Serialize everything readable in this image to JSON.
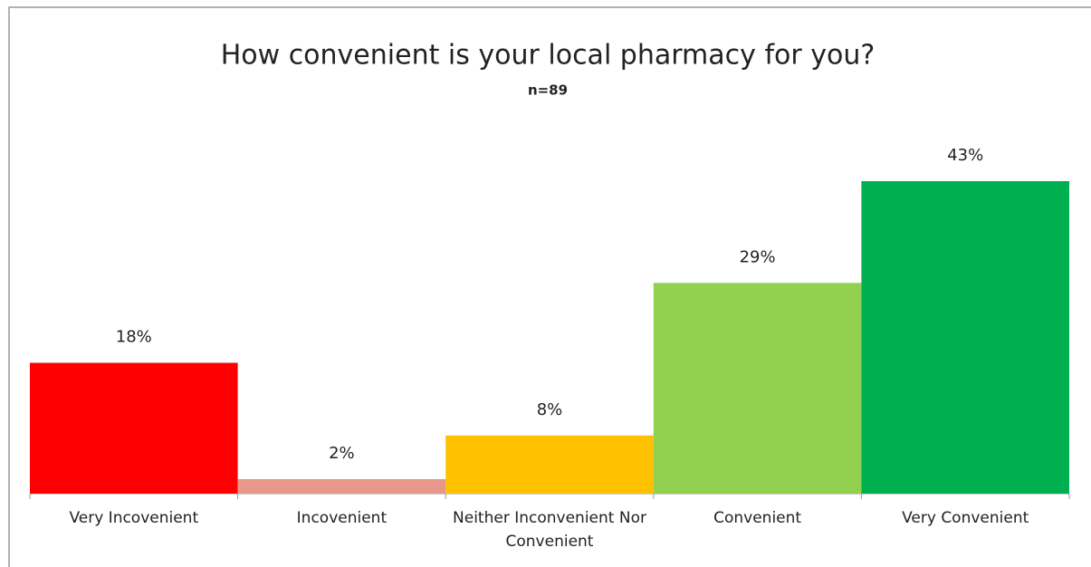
{
  "chart_data": {
    "type": "bar",
    "title": "How convenient is your local pharmacy for you?",
    "subtitle": "n=89",
    "categories": [
      "Very Incovenient",
      "Incovenient",
      "Neither Inconvenient Nor Convenient",
      "Convenient",
      "Very Convenient"
    ],
    "values": [
      18,
      2,
      8,
      29,
      43
    ],
    "value_labels": [
      "18%",
      "2%",
      "8%",
      "29%",
      "43%"
    ],
    "colors": [
      "#ff0000",
      "#e6998b",
      "#ffc000",
      "#92d050",
      "#00b050"
    ]
  }
}
